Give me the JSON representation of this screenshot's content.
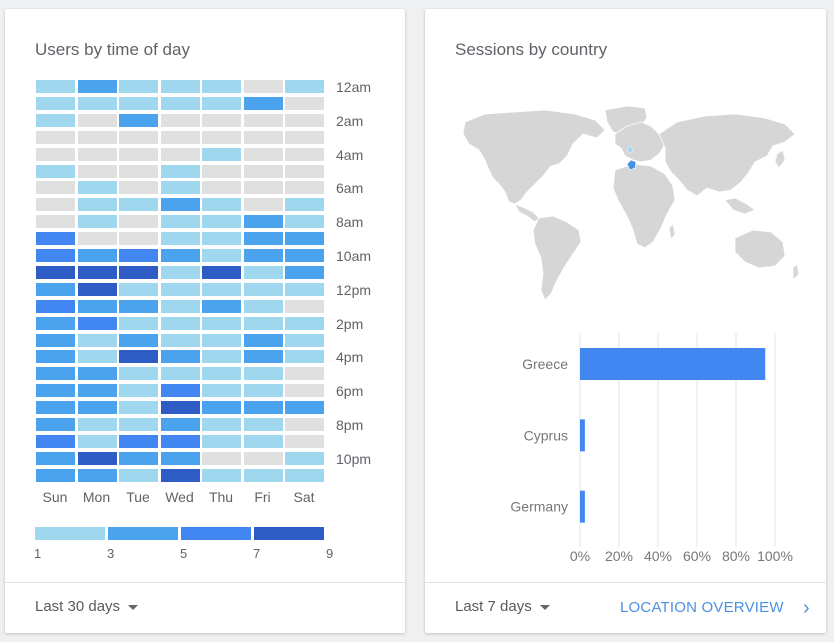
{
  "users_card": {
    "title": "Users by time of day",
    "range": "Last 30 days",
    "hour_labels": [
      "12am",
      "2am",
      "4am",
      "6am",
      "8am",
      "10am",
      "12pm",
      "2pm",
      "4pm",
      "6pm",
      "8pm",
      "10pm"
    ],
    "day_labels": [
      "Sun",
      "Mon",
      "Tue",
      "Wed",
      "Thu",
      "Fri",
      "Sat"
    ],
    "legend": [
      "1",
      "3",
      "5",
      "7",
      "9"
    ],
    "colors": [
      "#e0e0e0",
      "#9ed7ee",
      "#4ba3ee",
      "#4286f2",
      "#2f5bc4"
    ],
    "heatmap_levels": [
      [
        1,
        2,
        1,
        1,
        1,
        0,
        1
      ],
      [
        1,
        1,
        1,
        1,
        1,
        2,
        0
      ],
      [
        1,
        0,
        2,
        0,
        0,
        0,
        0
      ],
      [
        0,
        0,
        0,
        0,
        0,
        0,
        0
      ],
      [
        0,
        0,
        0,
        0,
        1,
        0,
        0
      ],
      [
        1,
        0,
        0,
        1,
        0,
        0,
        0
      ],
      [
        0,
        1,
        0,
        1,
        0,
        0,
        0
      ],
      [
        0,
        1,
        1,
        2,
        1,
        0,
        1
      ],
      [
        0,
        1,
        0,
        1,
        1,
        2,
        1
      ],
      [
        3,
        0,
        0,
        1,
        1,
        2,
        2
      ],
      [
        3,
        2,
        3,
        2,
        1,
        2,
        2
      ],
      [
        4,
        4,
        4,
        1,
        4,
        1,
        2
      ],
      [
        2,
        4,
        1,
        1,
        1,
        1,
        1
      ],
      [
        3,
        2,
        2,
        1,
        2,
        1,
        0
      ],
      [
        2,
        3,
        1,
        1,
        1,
        1,
        1
      ],
      [
        2,
        1,
        2,
        1,
        1,
        2,
        1
      ],
      [
        2,
        1,
        4,
        2,
        1,
        2,
        1
      ],
      [
        2,
        2,
        1,
        1,
        1,
        1,
        0
      ],
      [
        2,
        2,
        1,
        3,
        1,
        1,
        0
      ],
      [
        2,
        2,
        1,
        4,
        2,
        2,
        2
      ],
      [
        2,
        1,
        1,
        2,
        1,
        1,
        0
      ],
      [
        3,
        1,
        3,
        3,
        1,
        1,
        0
      ],
      [
        2,
        4,
        2,
        2,
        0,
        0,
        1
      ],
      [
        2,
        2,
        1,
        4,
        1,
        1,
        1
      ]
    ]
  },
  "sessions_card": {
    "title": "Sessions by country",
    "range": "Last 7 days",
    "link": "LOCATION OVERVIEW",
    "chevron": "›",
    "map_highlight_color": "#4a90e2",
    "chart_data": {
      "type": "bar",
      "orientation": "horizontal",
      "categories": [
        "Greece",
        "Cyprus",
        "Germany"
      ],
      "values": [
        95,
        2.5,
        2.5
      ],
      "xlim": [
        0,
        100
      ],
      "ticks": [
        "0%",
        "20%",
        "40%",
        "60%",
        "80%",
        "100%"
      ],
      "grid": true,
      "color": "#4286f2"
    }
  }
}
